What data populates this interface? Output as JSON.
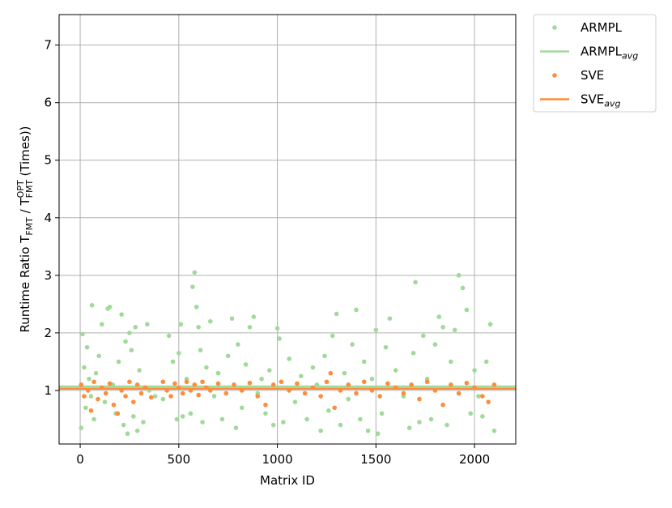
{
  "chart_data": {
    "type": "scatter",
    "xlabel": "Matrix ID",
    "ylabel": [
      {
        "text": "Runtime Ratio T"
      },
      {
        "text": "FMT",
        "sub": true
      },
      {
        "text": " / T"
      },
      {
        "text": "FMT",
        "sub": true
      },
      {
        "text": "OPT",
        "sup": true
      },
      {
        "text": " (Times))"
      }
    ],
    "xlim": [
      -107,
      2209
    ],
    "ylim": [
      0.07,
      7.53
    ],
    "xticks": [
      0,
      500,
      1000,
      1500,
      2000
    ],
    "yticks": [
      1,
      2,
      3,
      4,
      5,
      6,
      7
    ],
    "grid": true,
    "legend": "outside-upper-right",
    "series": [
      {
        "name": "ARMPL",
        "kind": "scatter",
        "color": "#a1d99b",
        "x": [
          5,
          12,
          20,
          28,
          35,
          45,
          55,
          60,
          70,
          80,
          95,
          110,
          125,
          140,
          150,
          165,
          180,
          195,
          210,
          220,
          230,
          240,
          250,
          260,
          270,
          280,
          290,
          300,
          320,
          340,
          350,
          380,
          420,
          450,
          470,
          490,
          500,
          510,
          520,
          540,
          560,
          570,
          580,
          590,
          600,
          610,
          620,
          640,
          660,
          680,
          700,
          720,
          750,
          770,
          790,
          800,
          820,
          840,
          860,
          880,
          900,
          920,
          940,
          960,
          980,
          1000,
          1010,
          1030,
          1060,
          1090,
          1120,
          1150,
          1180,
          1200,
          1220,
          1240,
          1260,
          1280,
          1300,
          1320,
          1340,
          1360,
          1380,
          1400,
          1420,
          1440,
          1460,
          1480,
          1500,
          1510,
          1530,
          1550,
          1570,
          1600,
          1640,
          1670,
          1690,
          1700,
          1720,
          1740,
          1760,
          1780,
          1800,
          1820,
          1840,
          1860,
          1880,
          1900,
          1920,
          1940,
          1960,
          1980,
          2000,
          2020,
          2040,
          2060,
          2080,
          2100
        ],
        "values": [
          0.35,
          1.98,
          1.4,
          0.7,
          1.75,
          1.2,
          0.9,
          2.48,
          0.5,
          1.3,
          1.6,
          2.15,
          0.8,
          2.42,
          2.45,
          1.1,
          0.6,
          1.5,
          2.32,
          0.4,
          1.85,
          0.25,
          2.0,
          1.7,
          0.55,
          2.1,
          0.3,
          1.35,
          0.45,
          2.15,
          1.0,
          0.9,
          0.85,
          1.95,
          1.5,
          0.5,
          1.65,
          2.15,
          0.55,
          1.2,
          0.6,
          2.8,
          3.05,
          2.45,
          2.1,
          1.7,
          0.45,
          1.4,
          2.2,
          0.9,
          1.3,
          0.5,
          1.6,
          2.25,
          0.35,
          1.8,
          0.7,
          1.45,
          2.1,
          2.28,
          0.95,
          1.2,
          0.6,
          1.35,
          0.4,
          2.08,
          1.9,
          0.45,
          1.55,
          0.8,
          1.25,
          0.5,
          1.4,
          1.1,
          0.3,
          1.6,
          0.65,
          1.95,
          2.33,
          0.4,
          1.3,
          0.85,
          1.8,
          2.4,
          0.5,
          1.5,
          0.3,
          1.2,
          2.05,
          0.25,
          0.6,
          1.75,
          2.25,
          1.35,
          0.9,
          0.35,
          1.65,
          2.88,
          0.45,
          1.95,
          1.2,
          0.5,
          1.8,
          2.28,
          2.1,
          0.4,
          1.5,
          2.05,
          3.0,
          2.78,
          2.4,
          0.6,
          1.35,
          0.9,
          0.55,
          1.5,
          2.15,
          0.3
        ]
      },
      {
        "name": "ARMPL",
        "subscript": "avg",
        "kind": "line",
        "color": "#a1d99b",
        "values": [
          1.07
        ]
      },
      {
        "name": "SVE",
        "kind": "scatter",
        "color": "#fd8d3c",
        "x": [
          5,
          20,
          40,
          55,
          70,
          90,
          110,
          130,
          150,
          170,
          190,
          210,
          230,
          250,
          270,
          290,
          310,
          330,
          360,
          420,
          440,
          460,
          480,
          500,
          520,
          540,
          560,
          580,
          600,
          620,
          640,
          660,
          700,
          740,
          780,
          820,
          860,
          900,
          940,
          980,
          1020,
          1060,
          1100,
          1140,
          1180,
          1220,
          1250,
          1270,
          1290,
          1320,
          1360,
          1400,
          1440,
          1480,
          1520,
          1560,
          1600,
          1640,
          1680,
          1720,
          1760,
          1800,
          1840,
          1880,
          1920,
          1960,
          2000,
          2040,
          2070,
          2100
        ],
        "values": [
          1.1,
          0.9,
          1.0,
          0.65,
          1.15,
          0.85,
          1.05,
          0.95,
          1.12,
          0.75,
          0.6,
          1.0,
          0.9,
          1.15,
          0.8,
          1.1,
          0.95,
          1.05,
          0.88,
          1.15,
          1.0,
          0.9,
          1.12,
          1.05,
          0.95,
          1.15,
          1.0,
          1.1,
          0.92,
          1.15,
          1.05,
          1.0,
          1.12,
          0.95,
          1.1,
          1.0,
          1.13,
          0.9,
          0.75,
          1.1,
          1.15,
          1.0,
          1.12,
          0.95,
          1.05,
          0.9,
          1.15,
          1.3,
          0.7,
          1.0,
          1.1,
          0.95,
          1.15,
          1.0,
          0.9,
          1.12,
          1.05,
          0.95,
          1.1,
          0.85,
          1.15,
          1.0,
          0.75,
          1.1,
          0.95,
          1.13,
          1.05,
          0.9,
          0.8,
          1.1
        ]
      },
      {
        "name": "SVE",
        "subscript": "avg",
        "kind": "line",
        "color": "#fd8d3c",
        "values": [
          1.03
        ]
      }
    ]
  }
}
